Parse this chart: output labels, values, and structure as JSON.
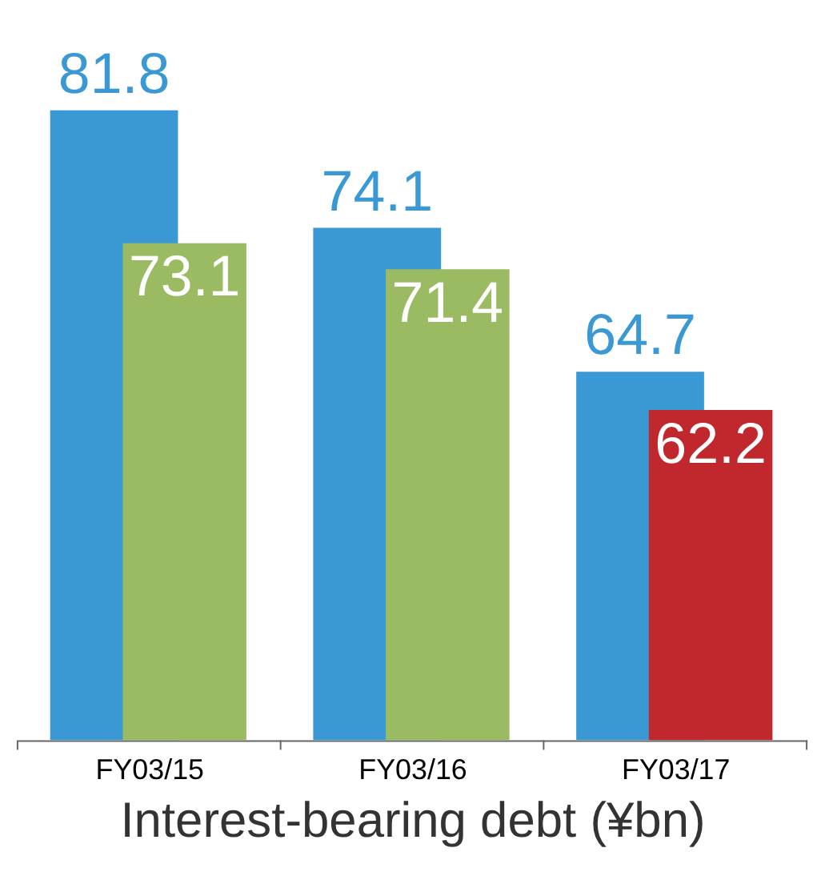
{
  "chart_data": {
    "type": "bar",
    "categories": [
      "FY03/15",
      "FY03/16",
      "FY03/17"
    ],
    "series": [
      {
        "color": "#3a98d4",
        "values": [
          81.8,
          74.1,
          64.7
        ]
      },
      {
        "colors": [
          "#9bbb63",
          "#9bbb63",
          "#c0282e"
        ],
        "values": [
          73.1,
          71.4,
          62.2
        ]
      }
    ],
    "ylim": [
      40.6,
      81.8
    ],
    "data_labels": true,
    "xlabel": "Interest-bearing debt (¥bn)",
    "grid": false
  }
}
